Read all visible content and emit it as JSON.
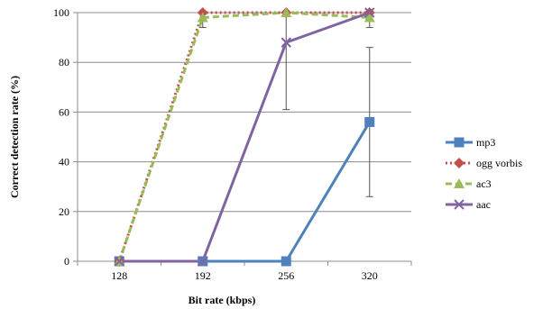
{
  "chart_data": {
    "type": "line",
    "xlabel": "Bit rate (kbps)",
    "ylabel": "Correct detection rate (%)",
    "categories": [
      "128",
      "192",
      "256",
      "320"
    ],
    "ylim": [
      0,
      100
    ],
    "yticks": [
      0,
      20,
      40,
      60,
      80,
      100
    ],
    "grid": "horizontal",
    "legend_position": "right",
    "series": [
      {
        "name": "mp3",
        "values": [
          0,
          0,
          0,
          56
        ],
        "error": [
          null,
          null,
          null,
          30
        ],
        "color": "#4F81BD",
        "line_style": "solid",
        "marker": "square"
      },
      {
        "name": "ogg vorbis",
        "values": [
          0,
          100,
          100,
          100
        ],
        "error": [
          null,
          null,
          null,
          null
        ],
        "color": "#C0504D",
        "line_style": "dotted",
        "marker": "diamond"
      },
      {
        "name": "ac3",
        "values": [
          0,
          98,
          100,
          98
        ],
        "error": [
          null,
          4,
          null,
          4
        ],
        "color": "#9BBB59",
        "line_style": "dashed",
        "marker": "triangle"
      },
      {
        "name": "aac",
        "values": [
          0,
          0,
          88,
          100
        ],
        "error": [
          null,
          null,
          27,
          null
        ],
        "color": "#8064A2",
        "line_style": "solid",
        "marker": "x"
      }
    ]
  }
}
